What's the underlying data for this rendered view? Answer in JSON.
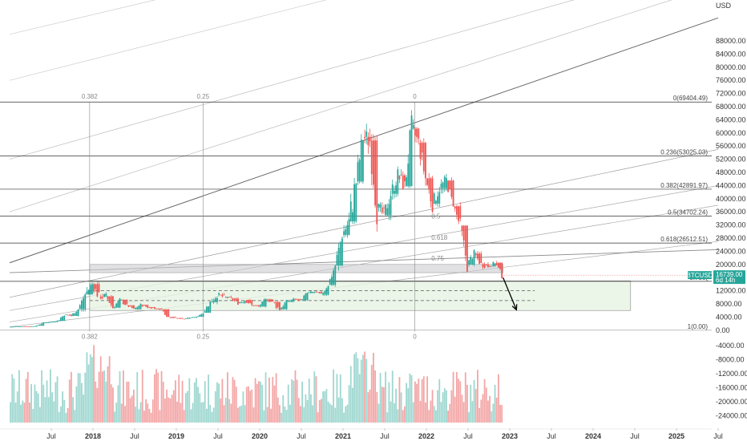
{
  "chart_data": {
    "type": "candlestick",
    "symbol": "BTCUSD",
    "currency_label": "USD",
    "price": {
      "ylim": [
        -2000,
        98000
      ],
      "tick_labels": [
        "88000.00",
        "84000.00",
        "80000.00",
        "76000.00",
        "72000.00",
        "68000.00",
        "64000.00",
        "60000.00",
        "56000.00",
        "52000.00",
        "48000.00",
        "44000.00",
        "40000.00",
        "36000.00",
        "32000.00",
        "28000.00",
        "24000.00",
        "20000.00",
        "12000.00",
        "8000.00",
        "4000.00",
        "0.00"
      ]
    },
    "volume": {
      "tick_labels": [
        "-4000.00",
        "-8000.00",
        "-12000.00",
        "-16000.00",
        "-20000.00",
        "-24000.00"
      ]
    },
    "x_tick_labels": [
      "Jul",
      "2018",
      "Jul",
      "2019",
      "Jul",
      "2020",
      "Jul",
      "2021",
      "Jul",
      "2022",
      "Jul",
      "2023",
      "Jul",
      "2024",
      "Jul",
      "2025",
      "Jul"
    ],
    "x_tick_years": [
      2017.5,
      2018,
      2018.5,
      2019,
      2019.5,
      2020,
      2020.5,
      2021,
      2021.5,
      2022,
      2022.5,
      2023,
      2023.5,
      2024,
      2024.5,
      2025,
      2025.5
    ],
    "fib_levels": [
      {
        "label": "0(69404.49)",
        "value": 69404.49
      },
      {
        "label": "0.236(53025.03)",
        "value": 53025.03
      },
      {
        "label": "0.382(42891.97)",
        "value": 42891.97
      },
      {
        "label": "0.5(34702.24)",
        "value": 34702.24
      },
      {
        "label": "0.618(26512.51)",
        "value": 26512.51
      },
      {
        "label": "0.786(",
        "value": 14853.0
      },
      {
        "label": "1(0.00)",
        "value": 0
      }
    ],
    "gann_labels": [
      {
        "label": "0.382",
        "t": 2017.96,
        "pos": "top"
      },
      {
        "label": "0.25",
        "t": 2019.32,
        "pos": "top"
      },
      {
        "label": "0",
        "t": 2021.86,
        "pos": "top"
      },
      {
        "label": "0.382",
        "t": 2017.96,
        "pos": "bottom"
      },
      {
        "label": "0.25",
        "t": 2019.32,
        "pos": "bottom"
      },
      {
        "label": "0",
        "t": 2021.86,
        "pos": "bottom"
      },
      {
        "label": "0.5",
        "t": 2022.06,
        "pos": "fan",
        "value": 34000
      },
      {
        "label": "0.618",
        "t": 2022.06,
        "pos": "fan",
        "value": 27500
      },
      {
        "label": "0.75",
        "t": 2022.06,
        "pos": "fan",
        "value": 21200
      }
    ],
    "support_zone": {
      "low": 17500,
      "high": 20000,
      "t_start": 2017.96,
      "t_end": 2022.92
    },
    "target_box": {
      "low": 6000,
      "high": 15000,
      "t_start": 2017.96,
      "t_end": 2024.45,
      "dashed_levels": [
        12000,
        9000
      ]
    },
    "projection_arrow": {
      "t_start": 2022.92,
      "v_start": 16000,
      "t_end": 2023.08,
      "v_end": 6200
    },
    "last_price": {
      "value": 16739.0,
      "label": "16739.00",
      "countdown": "6d 14h"
    },
    "ohlc_monthly": [
      [
        2017.0,
        1000,
        1200,
        900,
        1100
      ],
      [
        2017.083,
        1100,
        1200,
        1050,
        1150
      ],
      [
        2017.167,
        1150,
        1300,
        950,
        1080
      ],
      [
        2017.25,
        1080,
        1450,
        1060,
        1350
      ],
      [
        2017.333,
        1350,
        2400,
        1350,
        2300
      ],
      [
        2017.417,
        2300,
        3000,
        2100,
        2500
      ],
      [
        2017.5,
        2500,
        2900,
        1850,
        2850
      ],
      [
        2017.583,
        2850,
        4700,
        2700,
        4700
      ],
      [
        2017.667,
        4700,
        5000,
        2950,
        4350
      ],
      [
        2017.75,
        4350,
        6400,
        4100,
        6400
      ],
      [
        2017.833,
        6400,
        11300,
        5500,
        10900
      ],
      [
        2017.917,
        10900,
        19700,
        10800,
        14000
      ],
      [
        2018.0,
        14000,
        17200,
        9000,
        10200
      ],
      [
        2018.083,
        10200,
        11800,
        6000,
        10300
      ],
      [
        2018.167,
        10300,
        11700,
        6600,
        6900
      ],
      [
        2018.25,
        6900,
        9800,
        6500,
        9200
      ],
      [
        2018.333,
        9200,
        10000,
        7200,
        7500
      ],
      [
        2018.417,
        7500,
        7800,
        5800,
        6400
      ],
      [
        2018.5,
        6400,
        8500,
        6100,
        7700
      ],
      [
        2018.583,
        7700,
        7800,
        5900,
        7000
      ],
      [
        2018.667,
        7000,
        7400,
        6100,
        6600
      ],
      [
        2018.75,
        6600,
        7000,
        6100,
        6300
      ],
      [
        2018.833,
        6300,
        6500,
        3600,
        4000
      ],
      [
        2018.917,
        4000,
        4300,
        3100,
        3700
      ],
      [
        2019.0,
        3700,
        4100,
        3350,
        3450
      ],
      [
        2019.083,
        3450,
        4200,
        3400,
        3800
      ],
      [
        2019.167,
        3800,
        4100,
        3700,
        4100
      ],
      [
        2019.25,
        4100,
        5600,
        4050,
        5300
      ],
      [
        2019.333,
        5300,
        9100,
        5300,
        8550
      ],
      [
        2019.417,
        8550,
        13800,
        7500,
        10800
      ],
      [
        2019.5,
        10800,
        13200,
        9000,
        10100
      ],
      [
        2019.583,
        10100,
        12300,
        9400,
        9600
      ],
      [
        2019.667,
        9600,
        10900,
        7700,
        8300
      ],
      [
        2019.75,
        8300,
        10400,
        7300,
        9150
      ],
      [
        2019.833,
        9150,
        9500,
        6500,
        7550
      ],
      [
        2019.917,
        7550,
        7700,
        6450,
        7200
      ],
      [
        2020.0,
        7200,
        9600,
        6850,
        9350
      ],
      [
        2020.083,
        9350,
        10500,
        8500,
        8550
      ],
      [
        2020.167,
        8550,
        9200,
        3850,
        6400
      ],
      [
        2020.25,
        6400,
        9450,
        6150,
        8650
      ],
      [
        2020.333,
        8650,
        10050,
        8100,
        9450
      ],
      [
        2020.417,
        9450,
        10400,
        8900,
        9150
      ],
      [
        2020.5,
        9150,
        11450,
        8900,
        11350
      ],
      [
        2020.583,
        11350,
        12500,
        10600,
        11650
      ],
      [
        2020.667,
        11650,
        12100,
        9850,
        10800
      ],
      [
        2020.75,
        10800,
        14100,
        10400,
        13800
      ],
      [
        2020.833,
        13800,
        19900,
        13200,
        19700
      ],
      [
        2020.917,
        19700,
        29300,
        17600,
        29000
      ],
      [
        2021.0,
        29000,
        41950,
        28100,
        33100
      ],
      [
        2021.083,
        33100,
        58350,
        32300,
        45250
      ],
      [
        2021.167,
        45250,
        61800,
        43000,
        58800
      ],
      [
        2021.25,
        58800,
        64900,
        47000,
        57700
      ],
      [
        2021.333,
        57700,
        59600,
        30000,
        37300
      ],
      [
        2021.417,
        37300,
        41300,
        28800,
        35000
      ],
      [
        2021.5,
        35000,
        42500,
        29300,
        41500
      ],
      [
        2021.583,
        41500,
        50500,
        37300,
        47100
      ],
      [
        2021.667,
        47100,
        52900,
        39600,
        43800
      ],
      [
        2021.75,
        43800,
        66999,
        43300,
        61300
      ],
      [
        2021.833,
        61300,
        69000,
        53500,
        57000
      ],
      [
        2021.917,
        57000,
        59100,
        42000,
        46200
      ],
      [
        2022.0,
        46200,
        47900,
        32900,
        38500
      ],
      [
        2022.083,
        38500,
        45800,
        34300,
        43200
      ],
      [
        2022.167,
        43200,
        48200,
        37200,
        45500
      ],
      [
        2022.25,
        45500,
        47400,
        37600,
        37700
      ],
      [
        2022.333,
        37700,
        40000,
        26700,
        31800
      ],
      [
        2022.417,
        31800,
        31900,
        17600,
        19950
      ],
      [
        2022.5,
        19950,
        24650,
        18800,
        23300
      ],
      [
        2022.583,
        23300,
        25200,
        19550,
        20050
      ],
      [
        2022.667,
        20050,
        22800,
        18150,
        19450
      ],
      [
        2022.75,
        19450,
        20950,
        18200,
        20500
      ],
      [
        2022.833,
        20500,
        21450,
        15600,
        16739
      ]
    ]
  }
}
